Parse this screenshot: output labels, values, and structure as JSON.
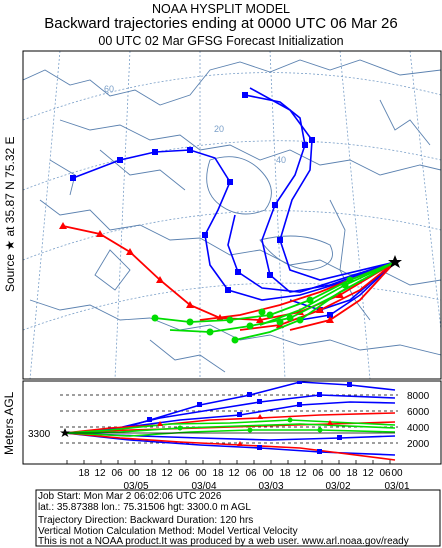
{
  "header": {
    "line1": "NOAA HYSPLIT MODEL",
    "line2": "Backward trajectories ending at 0000 UTC 06 Mar 26",
    "line3": "00 UTC 02 Mar    GFSG  Forecast Initialization"
  },
  "source_label": {
    "text": "Source ★ at    35.87 N    75.32 E"
  },
  "map": {
    "latitude_labels": [
      "20",
      "40",
      "60"
    ],
    "source_marker": "star-icon",
    "trajectory_colors": {
      "red": "#ff0000",
      "blue": "#0000ff",
      "green": "#00ff00"
    }
  },
  "height_panel": {
    "ylabel": "Meters AGL",
    "start_height": "3300",
    "y_ticks": [
      "8000",
      "6000",
      "4000",
      "2000"
    ],
    "x_hour_labels": [
      "18",
      "12",
      "06",
      "00",
      "18",
      "12",
      "06",
      "00",
      "18",
      "12",
      "06",
      "00",
      "18",
      "12",
      "06",
      "00",
      "18",
      "12",
      "06",
      "00"
    ],
    "x_date_labels": [
      "03/05",
      "03/04",
      "03/03",
      "03/02",
      "03/01"
    ]
  },
  "info": {
    "job_start": "Job Start: Mon Mar  2 06:02:06 UTC 2026",
    "coords": "lat.: 35.87388   lon.: 75.31506    hgt: 3300.0 m AGL",
    "direction": "Trajectory Direction: Backward        Duration: 120 hrs",
    "vertical": "Vertical Motion Calculation Method: Model Vertical Velocity",
    "disclaimer": "This is not a NOAA product.It was produced by a web user. www.arl.noaa.gov/ready"
  }
}
